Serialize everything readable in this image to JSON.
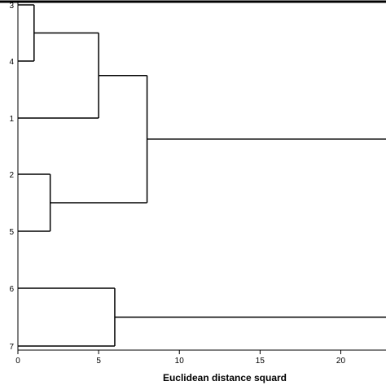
{
  "chart_data": {
    "type": "dendrogram",
    "title": "",
    "xlabel": "Euclidean distance squard",
    "ylabel": "",
    "xlim": [
      0,
      22.8
    ],
    "xticks": [
      0,
      5,
      10,
      15,
      20
    ],
    "leaf_order": [
      "3",
      "4",
      "1",
      "2",
      "5",
      "6",
      "7"
    ],
    "merges": [
      {
        "children": [
          "3",
          "4"
        ],
        "distance": 1
      },
      {
        "children": [
          "3-4",
          "1"
        ],
        "distance": 5
      },
      {
        "children": [
          "2",
          "5"
        ],
        "distance": 2
      },
      {
        "children": [
          "3-4-1",
          "2-5"
        ],
        "distance": 8
      },
      {
        "children": [
          "6",
          "7"
        ],
        "distance": 6
      }
    ],
    "grid": false,
    "legend": "none"
  }
}
